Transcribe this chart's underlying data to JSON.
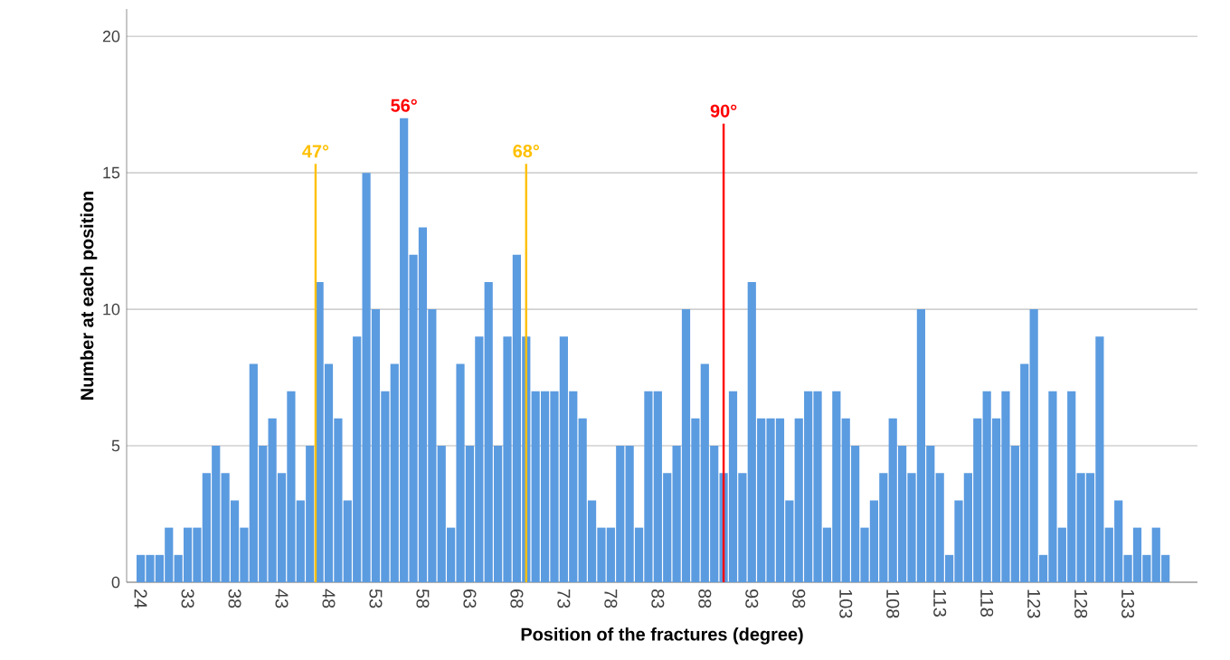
{
  "chart_data": {
    "type": "bar",
    "xlabel": "Position of the fractures (degree)",
    "ylabel": "Number at each position",
    "categories": [
      "24",
      null,
      null,
      null,
      null,
      "33",
      null,
      null,
      null,
      null,
      "38",
      null,
      null,
      null,
      null,
      "43",
      null,
      null,
      null,
      null,
      "48",
      null,
      null,
      null,
      null,
      "53",
      null,
      null,
      null,
      null,
      "58",
      null,
      null,
      null,
      null,
      "63",
      null,
      null,
      null,
      null,
      "68",
      null,
      null,
      null,
      null,
      "73",
      null,
      null,
      null,
      null,
      "78",
      null,
      null,
      null,
      null,
      "83",
      null,
      null,
      null,
      null,
      "88",
      null,
      null,
      null,
      null,
      "93",
      null,
      null,
      null,
      null,
      "98",
      null,
      null,
      null,
      null,
      "103",
      null,
      null,
      null,
      null,
      "108",
      null,
      null,
      null,
      null,
      "113",
      null,
      null,
      null,
      null,
      "118",
      null,
      null,
      null,
      null,
      "123",
      null,
      null,
      null,
      null,
      "128",
      null,
      null,
      null,
      null,
      "133",
      null,
      null,
      null,
      null
    ],
    "values": [
      1,
      1,
      1,
      2,
      1,
      2,
      2,
      4,
      5,
      4,
      3,
      2,
      8,
      5,
      6,
      4,
      7,
      3,
      5,
      11,
      8,
      6,
      3,
      9,
      15,
      10,
      7,
      8,
      17,
      12,
      13,
      10,
      5,
      2,
      8,
      5,
      9,
      11,
      5,
      9,
      12,
      9,
      7,
      7,
      7,
      9,
      7,
      6,
      3,
      2,
      2,
      5,
      5,
      2,
      7,
      7,
      4,
      5,
      10,
      6,
      8,
      5,
      4,
      7,
      4,
      11,
      6,
      6,
      6,
      3,
      6,
      7,
      7,
      2,
      7,
      6,
      5,
      2,
      3,
      4,
      6,
      5,
      4,
      10,
      5,
      4,
      1,
      3,
      4,
      6,
      7,
      6,
      7,
      5,
      8,
      10,
      1,
      7,
      2,
      7,
      4,
      4,
      9,
      2,
      3,
      1,
      2,
      1,
      2,
      1
    ],
    "color": "#5b9be0",
    "ylim": [
      0,
      21
    ],
    "yticks": [
      0,
      5,
      10,
      15,
      20
    ],
    "grid": "y",
    "annotations": [
      "56°",
      "47°",
      "68°",
      "90°"
    ]
  }
}
